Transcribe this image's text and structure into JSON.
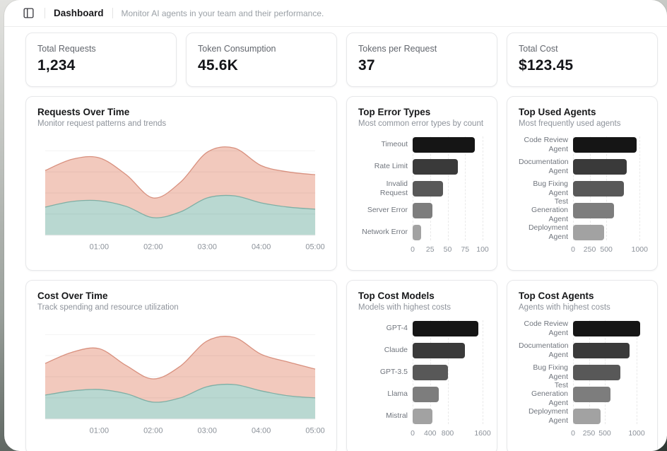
{
  "topbar": {
    "title": "Dashboard",
    "subtitle": "Monitor AI agents in your team and their performance."
  },
  "icons": {
    "sidebar_toggle": "panel-left"
  },
  "stats": [
    {
      "label": "Total Requests",
      "value": "1,234"
    },
    {
      "label": "Token Consumption",
      "value": "45.6K"
    },
    {
      "label": "Tokens per Request",
      "value": "37"
    },
    {
      "label": "Total Cost",
      "value": "$123.45"
    }
  ],
  "colors": {
    "bar_ramp": [
      "#151515",
      "#3a3a3a",
      "#585858",
      "#7d7d7d",
      "#a2a2a2"
    ],
    "area_teal_fill": "#b9d8d1",
    "area_teal_stroke": "#7fafa5",
    "area_pink_fill": "#f2c9bd",
    "area_pink_stroke": "#d8907e"
  },
  "chart_data": [
    {
      "id": "requests-over-time",
      "type": "area",
      "stacked": true,
      "title": "Requests Over Time",
      "subtitle": "Monitor request patterns and trends",
      "x": [
        "00:00",
        "00:30",
        "01:00",
        "01:30",
        "02:00",
        "02:30",
        "03:00",
        "03:30",
        "04:00",
        "04:30",
        "05:00"
      ],
      "x_tick_labels": [
        "01:00",
        "02:00",
        "03:00",
        "04:00",
        "05:00"
      ],
      "ylim": [
        0,
        130
      ],
      "gridlines": [
        30,
        60,
        90,
        120
      ],
      "legend": "none",
      "series": [
        {
          "name": "series-bottom",
          "fill": "#b9d8d1",
          "stroke": "#7fafa5",
          "values": [
            40,
            48,
            49,
            41,
            25,
            33,
            53,
            56,
            46,
            40,
            37
          ]
        },
        {
          "name": "series-top",
          "fill": "#f2c9bd",
          "stroke": "#d8907e",
          "values": [
            52,
            60,
            61,
            45,
            28,
            42,
            65,
            68,
            53,
            50,
            49
          ]
        }
      ]
    },
    {
      "id": "top-error-types",
      "type": "bar",
      "title": "Top Error Types",
      "subtitle": "Most common error types by count",
      "categories": [
        "Timeout",
        "Rate Limit",
        "Invalid Request",
        "Server Error",
        "Network Error"
      ],
      "values": [
        89,
        65,
        43,
        28,
        12
      ],
      "xticks": [
        0,
        25,
        50,
        75,
        100
      ],
      "xmax": 100,
      "bar_colors": [
        "#151515",
        "#3a3a3a",
        "#585858",
        "#7d7d7d",
        "#a2a2a2"
      ]
    },
    {
      "id": "top-used-agents",
      "type": "bar",
      "title": "Top Used Agents",
      "subtitle": "Most frequently used agents",
      "categories": [
        "Code Review Agent",
        "Documentation Agent",
        "Bug Fixing Agent",
        "Test Generation Agent",
        "Deployment Agent"
      ],
      "values": [
        950,
        810,
        760,
        620,
        470
      ],
      "xticks": [
        0,
        250,
        500,
        1000
      ],
      "xmax": 1050,
      "bar_colors": [
        "#151515",
        "#3a3a3a",
        "#585858",
        "#7d7d7d",
        "#a2a2a2"
      ]
    },
    {
      "id": "cost-over-time",
      "type": "area",
      "stacked": true,
      "title": "Cost Over Time",
      "subtitle": "Track spending and resource utilization",
      "x": [
        "00:00",
        "00:30",
        "01:00",
        "01:30",
        "02:00",
        "02:30",
        "03:00",
        "03:30",
        "04:00",
        "04:30",
        "05:00"
      ],
      "x_tick_labels": [
        "01:00",
        "02:00",
        "03:00",
        "04:00",
        "05:00"
      ],
      "ylim": [
        0,
        130
      ],
      "gridlines": [
        30,
        60,
        90,
        120
      ],
      "legend": "none",
      "series": [
        {
          "name": "series-bottom",
          "fill": "#b9d8d1",
          "stroke": "#7fafa5",
          "values": [
            34,
            40,
            42,
            36,
            24,
            30,
            46,
            49,
            40,
            33,
            30
          ]
        },
        {
          "name": "series-top",
          "fill": "#f2c9bd",
          "stroke": "#d8907e",
          "values": [
            45,
            55,
            58,
            40,
            33,
            45,
            65,
            67,
            52,
            48,
            41
          ]
        }
      ]
    },
    {
      "id": "top-cost-models",
      "type": "bar",
      "title": "Top Cost Models",
      "subtitle": "Models with highest costs",
      "categories": [
        "GPT-4",
        "Claude",
        "GPT-3.5",
        "Llama",
        "Mistral"
      ],
      "values": [
        1500,
        1200,
        800,
        600,
        450
      ],
      "xticks": [
        0,
        400,
        800,
        1600
      ],
      "xmax": 1600,
      "bar_colors": [
        "#151515",
        "#3a3a3a",
        "#585858",
        "#7d7d7d",
        "#a2a2a2"
      ]
    },
    {
      "id": "top-cost-agents",
      "type": "bar",
      "title": "Top Cost Agents",
      "subtitle": "Agents with highest costs",
      "categories": [
        "Code Review Agent",
        "Documentation Agent",
        "Bug Fixing Agent",
        "Test Generation Agent",
        "Deployment Agent"
      ],
      "values": [
        1050,
        890,
        740,
        590,
        430
      ],
      "xticks": [
        0,
        250,
        500,
        1000
      ],
      "xmax": 1100,
      "bar_colors": [
        "#151515",
        "#3a3a3a",
        "#585858",
        "#7d7d7d",
        "#a2a2a2"
      ]
    }
  ]
}
